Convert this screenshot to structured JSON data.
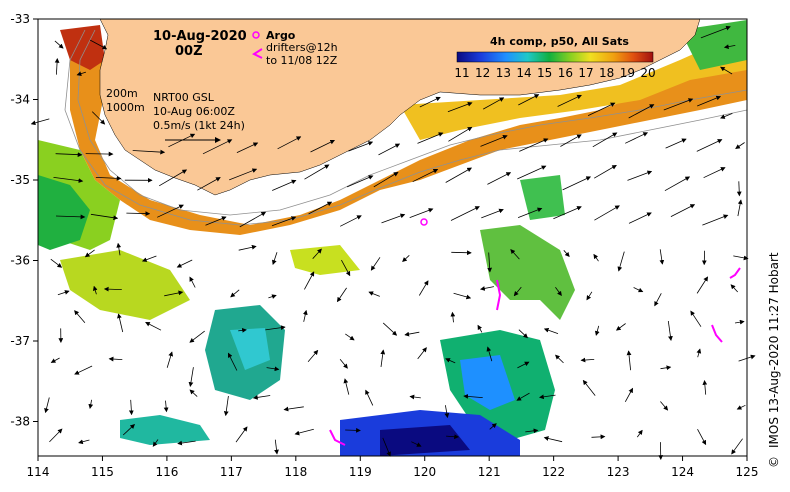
{
  "map": {
    "datetime_line1": "10-Aug-2020",
    "datetime_line2": "00Z",
    "legend_argo": "Argo",
    "legend_drifters_1": "drifters@12h",
    "legend_drifters_2": "to 11/08 12Z",
    "depth_label_1": "200m",
    "depth_label_2": "1000m",
    "current_info_1": "NRT00 GSL",
    "current_info_2": "10-Aug 06:00Z",
    "current_info_3": "0.5m/s (1kt 24h)",
    "colorbar_title": "4h comp, p50, All Sats",
    "colorbar_ticks": [
      "11",
      "12",
      "13",
      "14",
      "15",
      "16",
      "17",
      "18",
      "19",
      "20"
    ],
    "credit": "IMOS 13-Aug-2020 11:27 Hobart",
    "copyright_symbol": "©",
    "lon_ticks": [
      "114",
      "115",
      "116",
      "117",
      "118",
      "119",
      "120",
      "121",
      "122",
      "123",
      "124",
      "125"
    ],
    "lat_ticks": [
      "-33",
      "-34",
      "-35",
      "-36",
      "-37",
      "-38"
    ],
    "colors": {
      "land": "#fac896",
      "frame": "#000000",
      "argo": "#ff00ff",
      "drifter": "#ff00ff"
    }
  }
}
